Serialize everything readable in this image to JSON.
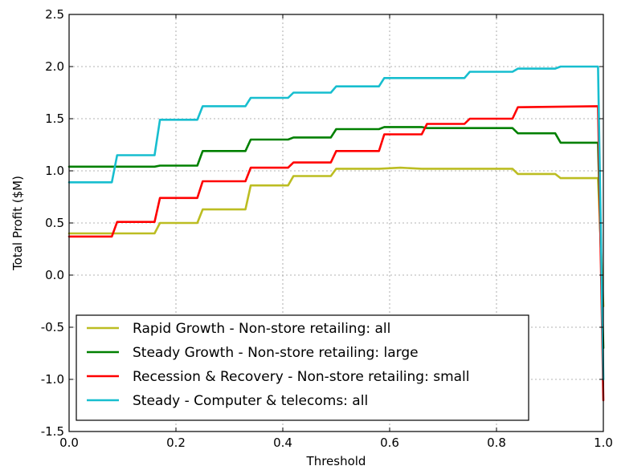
{
  "chart_data": {
    "type": "line",
    "title": "",
    "xlabel": "Threshold",
    "ylabel": "Total Profit ($M)",
    "xlim": [
      0.0,
      1.0
    ],
    "ylim": [
      -1.5,
      2.5
    ],
    "xticks": [
      "0.0",
      "0.2",
      "0.4",
      "0.6",
      "0.8",
      "1.0"
    ],
    "yticks": [
      "-1.5",
      "-1.0",
      "-0.5",
      "0.0",
      "0.5",
      "1.0",
      "1.5",
      "2.0",
      "2.5"
    ],
    "grid": true,
    "legend_position": "lower-left",
    "series": [
      {
        "name": "Rapid Growth - Non-store retailing: all",
        "color": "#bcbd22",
        "x": [
          0.0,
          0.16,
          0.17,
          0.24,
          0.25,
          0.33,
          0.34,
          0.41,
          0.42,
          0.49,
          0.5,
          0.58,
          0.62,
          0.66,
          0.75,
          0.83,
          0.84,
          0.91,
          0.92,
          0.99,
          1.0
        ],
        "y": [
          0.4,
          0.4,
          0.5,
          0.5,
          0.63,
          0.63,
          0.86,
          0.86,
          0.95,
          0.95,
          1.02,
          1.02,
          1.03,
          1.02,
          1.02,
          1.02,
          0.97,
          0.97,
          0.93,
          0.93,
          -0.3
        ]
      },
      {
        "name": "Steady Growth - Non-store retailing: large",
        "color": "#008000",
        "x": [
          0.0,
          0.08,
          0.16,
          0.17,
          0.24,
          0.25,
          0.33,
          0.34,
          0.41,
          0.42,
          0.49,
          0.5,
          0.58,
          0.59,
          0.66,
          0.67,
          0.75,
          0.83,
          0.84,
          0.91,
          0.92,
          0.99,
          1.0
        ],
        "y": [
          1.04,
          1.04,
          1.04,
          1.05,
          1.05,
          1.19,
          1.19,
          1.3,
          1.3,
          1.32,
          1.32,
          1.4,
          1.4,
          1.42,
          1.42,
          1.41,
          1.41,
          1.41,
          1.36,
          1.36,
          1.27,
          1.27,
          -0.7
        ]
      },
      {
        "name": "Recession & Recovery - Non-store retailing: small",
        "color": "#ff0000",
        "x": [
          0.0,
          0.08,
          0.09,
          0.16,
          0.17,
          0.24,
          0.25,
          0.33,
          0.34,
          0.41,
          0.42,
          0.49,
          0.5,
          0.58,
          0.59,
          0.66,
          0.67,
          0.74,
          0.75,
          0.83,
          0.84,
          0.99,
          1.0
        ],
        "y": [
          0.37,
          0.37,
          0.51,
          0.51,
          0.74,
          0.74,
          0.9,
          0.9,
          1.03,
          1.03,
          1.08,
          1.08,
          1.19,
          1.19,
          1.35,
          1.35,
          1.45,
          1.45,
          1.5,
          1.5,
          1.61,
          1.62,
          -1.2
        ]
      },
      {
        "name": "Steady - Computer & telecoms: all",
        "color": "#17becf",
        "x": [
          0.0,
          0.08,
          0.09,
          0.16,
          0.17,
          0.24,
          0.25,
          0.33,
          0.34,
          0.41,
          0.42,
          0.49,
          0.5,
          0.58,
          0.59,
          0.74,
          0.75,
          0.83,
          0.84,
          0.91,
          0.92,
          0.99,
          1.0
        ],
        "y": [
          0.89,
          0.89,
          1.15,
          1.15,
          1.49,
          1.49,
          1.62,
          1.62,
          1.7,
          1.7,
          1.75,
          1.75,
          1.81,
          1.81,
          1.89,
          1.89,
          1.95,
          1.95,
          1.98,
          1.98,
          2.0,
          2.0,
          -1.0
        ]
      }
    ]
  }
}
